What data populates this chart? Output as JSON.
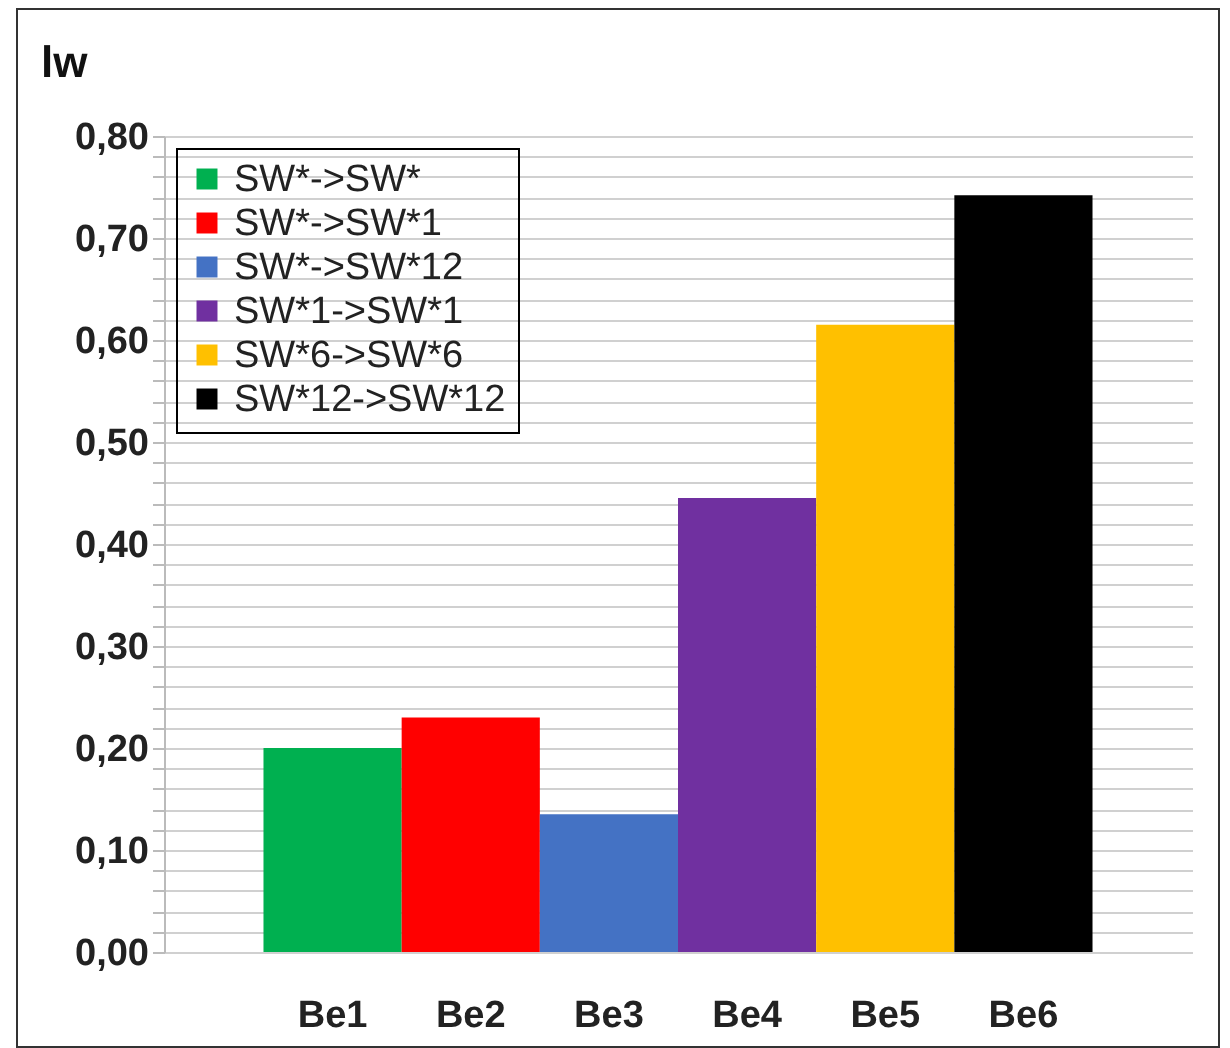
{
  "chart_data": {
    "type": "bar",
    "ylabel": "lw",
    "categories": [
      "Be1",
      "Be2",
      "Be3",
      "Be4",
      "Be5",
      "Be6"
    ],
    "series": [
      {
        "name": "SW*->SW*",
        "color": "#00b050",
        "values": [
          0.2,
          null,
          null,
          null,
          null,
          null
        ]
      },
      {
        "name": "SW*->SW*1",
        "color": "#ff0000",
        "values": [
          null,
          0.23,
          null,
          null,
          null,
          null
        ]
      },
      {
        "name": "SW*->SW*12",
        "color": "#4472c4",
        "values": [
          null,
          null,
          0.135,
          null,
          null,
          null
        ]
      },
      {
        "name": "SW*1->SW*1",
        "color": "#7030a0",
        "values": [
          null,
          null,
          null,
          0.445,
          null,
          null
        ]
      },
      {
        "name": "SW*6->SW*6",
        "color": "#ffc000",
        "values": [
          null,
          null,
          null,
          null,
          0.615,
          null
        ]
      },
      {
        "name": "SW*12->SW*12",
        "color": "#000000",
        "values": [
          null,
          null,
          null,
          null,
          null,
          0.742
        ]
      }
    ],
    "ylim": [
      0,
      0.8
    ],
    "yticks": [
      {
        "value": 0,
        "label": "0,00"
      },
      {
        "value": 0.02,
        "label": null
      },
      {
        "value": 0.04,
        "label": null
      },
      {
        "value": 0.06,
        "label": null
      },
      {
        "value": 0.08,
        "label": null
      },
      {
        "value": 0.1,
        "label": "0,10"
      },
      {
        "value": 0.12,
        "label": null
      },
      {
        "value": 0.14,
        "label": null
      },
      {
        "value": 0.16,
        "label": null
      },
      {
        "value": 0.18,
        "label": null
      },
      {
        "value": 0.2,
        "label": "0,20"
      },
      {
        "value": 0.22,
        "label": null
      },
      {
        "value": 0.24,
        "label": null
      },
      {
        "value": 0.26,
        "label": null
      },
      {
        "value": 0.28,
        "label": null
      },
      {
        "value": 0.3,
        "label": "0,30"
      },
      {
        "value": 0.32,
        "label": null
      },
      {
        "value": 0.34,
        "label": null
      },
      {
        "value": 0.36,
        "label": null
      },
      {
        "value": 0.38,
        "label": null
      },
      {
        "value": 0.4,
        "label": "0,40"
      },
      {
        "value": 0.42,
        "label": null
      },
      {
        "value": 0.44,
        "label": null
      },
      {
        "value": 0.46,
        "label": null
      },
      {
        "value": 0.48,
        "label": null
      },
      {
        "value": 0.5,
        "label": "0,50"
      },
      {
        "value": 0.52,
        "label": null
      },
      {
        "value": 0.54,
        "label": null
      },
      {
        "value": 0.56,
        "label": null
      },
      {
        "value": 0.58,
        "label": null
      },
      {
        "value": 0.6,
        "label": "0,60"
      },
      {
        "value": 0.62,
        "label": null
      },
      {
        "value": 0.64,
        "label": null
      },
      {
        "value": 0.66,
        "label": null
      },
      {
        "value": 0.68,
        "label": null
      },
      {
        "value": 0.7,
        "label": "0,70"
      },
      {
        "value": 0.72,
        "label": null
      },
      {
        "value": 0.74,
        "label": null
      },
      {
        "value": 0.76,
        "label": null
      },
      {
        "value": 0.78,
        "label": null
      },
      {
        "value": 0.8,
        "label": "0,80"
      }
    ],
    "grid": true,
    "legend": "top left"
  }
}
